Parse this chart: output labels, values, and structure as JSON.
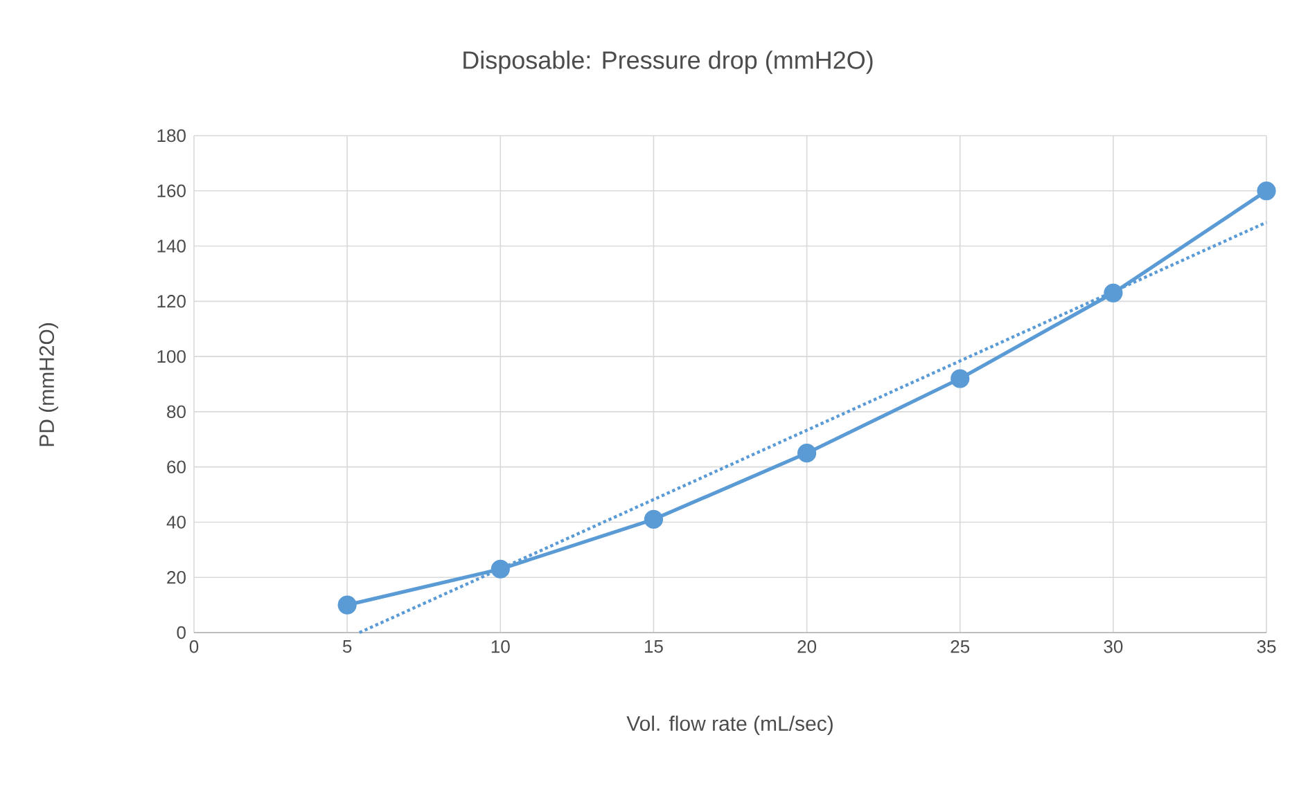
{
  "chart_data": {
    "type": "line",
    "title": "Disposable:  Pressure drop (mmH2O)",
    "xlabel": "Vol. flow rate (mL/sec)",
    "ylabel": "PD (mmH2O)",
    "x": [
      5,
      10,
      15,
      20,
      25,
      30,
      35
    ],
    "series": [
      {
        "color": "#5b9bd5",
        "values": [
          10,
          23,
          41,
          65,
          92,
          123,
          160
        ]
      },
      {
        "type": "line",
        "x": [
          5.4,
          35
        ],
        "values": [
          0,
          148.6
        ],
        "color": "#5b9bd5",
        "line_style": "dotted",
        "marker": "none"
      }
    ],
    "xlim": [
      0,
      35
    ],
    "xticks": [
      0,
      5,
      10,
      15,
      20,
      25,
      30,
      35
    ],
    "ylim": [
      0,
      180
    ],
    "yticks": [
      0,
      20,
      40,
      60,
      80,
      100,
      120,
      140,
      160,
      180
    ],
    "grid": true,
    "marker": "circle",
    "line_style": "solid"
  }
}
